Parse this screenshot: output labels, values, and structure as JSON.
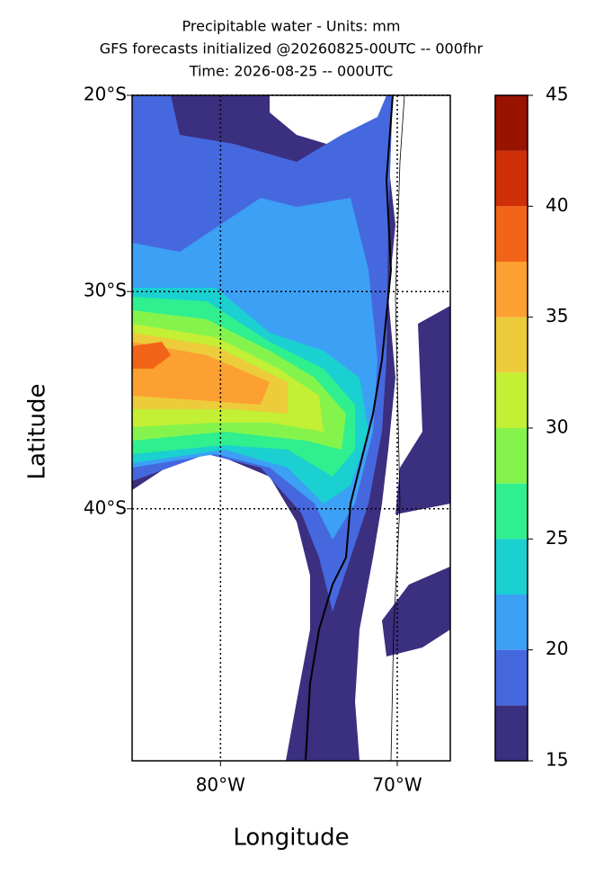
{
  "chart_data": {
    "type": "contour-map",
    "title": [
      "Precipitable water - Units: mm",
      "GFS forecasts initialized @20260825-00UTC -- 000fhr",
      "Time: 2026-08-25 -- 000UTC"
    ],
    "xlabel": "Longitude",
    "ylabel": "Latitude",
    "xlim": [
      -85,
      -67
    ],
    "ylim": [
      -50,
      -20
    ],
    "xticks": [
      {
        "value": -80,
        "label": "80°W"
      },
      {
        "value": -70,
        "label": "70°W"
      }
    ],
    "yticks": [
      {
        "value": -20,
        "label": "20°S"
      },
      {
        "value": -30,
        "label": "30°S"
      },
      {
        "value": -40,
        "label": "40°S"
      }
    ],
    "grid": true,
    "colorbar": {
      "levels": [
        15,
        17.5,
        20,
        22.5,
        25,
        27.5,
        30,
        32.5,
        35,
        37.5,
        40,
        42.5,
        45
      ],
      "colors": [
        "#3b2f80",
        "#4668de",
        "#3ca0f5",
        "#1ad0d0",
        "#2fef8f",
        "#84f44c",
        "#c3ef34",
        "#eccc3a",
        "#fca032",
        "#f26417",
        "#cf2f07",
        "#9a1200"
      ],
      "ticks": [
        15,
        20,
        25,
        30,
        35,
        40,
        45
      ]
    }
  }
}
